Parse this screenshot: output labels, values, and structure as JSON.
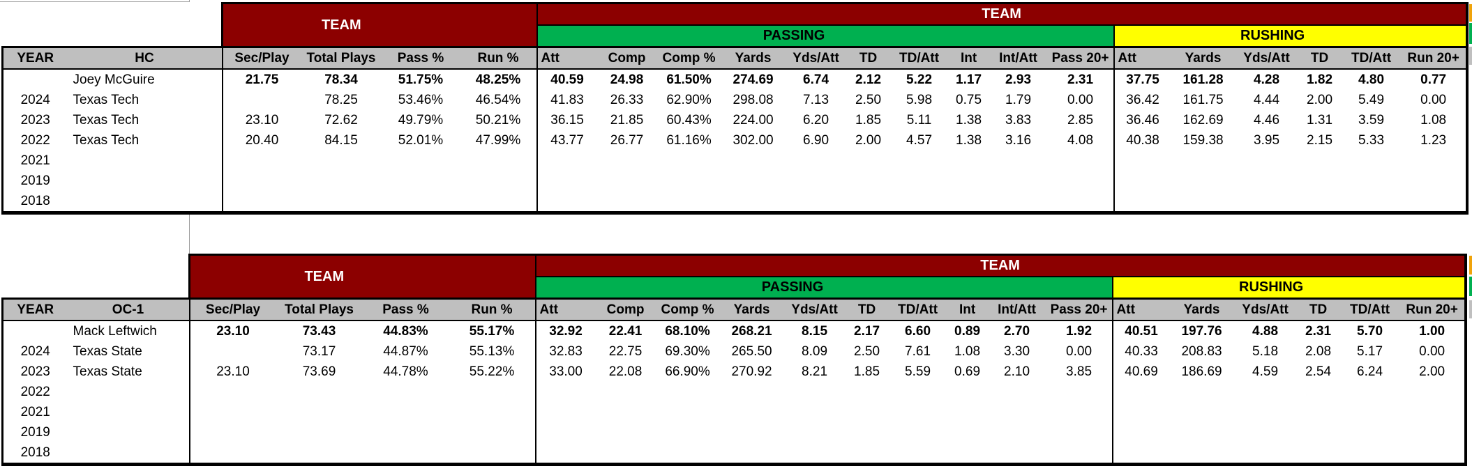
{
  "banners": {
    "team": "TEAM",
    "passing": "PASSING",
    "rushing": "RUSHING"
  },
  "colors": {
    "maroon_banner": "#8C0000",
    "passing_green": "#00B050",
    "rushing_yellow": "#FFFF00",
    "header_gray": "#BFBFBF",
    "right_edge_sliver_orange": "#F0A30A",
    "background": "#FFFFFF",
    "text": "#000000",
    "banner_text": "#FFFFFF"
  },
  "tables": [
    {
      "name": "head-coach-table",
      "coach_column_label": "HC",
      "coach_name": "Joey McGuire",
      "headers": [
        "YEAR",
        "HC",
        "Sec/Play",
        "Total Plays",
        "Pass %",
        "Run %",
        "Att",
        "Comp",
        "Comp %",
        "Yards",
        "Yds/Att",
        "TD",
        "TD/Att",
        "Int",
        "Int/Att",
        "Pass 20+",
        "Att",
        "Yards",
        "Yds/Att",
        "TD",
        "TD/Att",
        "Run 20+"
      ],
      "rows": [
        [
          "",
          "Joey McGuire",
          "21.75",
          "78.34",
          "51.75%",
          "48.25%",
          "40.59",
          "24.98",
          "61.50%",
          "274.69",
          "6.74",
          "2.12",
          "5.22",
          "1.17",
          "2.93",
          "2.31",
          "37.75",
          "161.28",
          "4.28",
          "1.82",
          "4.80",
          "0.77"
        ],
        [
          "2024",
          "Texas Tech",
          "",
          "78.25",
          "53.46%",
          "46.54%",
          "41.83",
          "26.33",
          "62.90%",
          "298.08",
          "7.13",
          "2.50",
          "5.98",
          "0.75",
          "1.79",
          "0.00",
          "36.42",
          "161.75",
          "4.44",
          "2.00",
          "5.49",
          "0.00"
        ],
        [
          "2023",
          "Texas Tech",
          "23.10",
          "72.62",
          "49.79%",
          "50.21%",
          "36.15",
          "21.85",
          "60.43%",
          "224.00",
          "6.20",
          "1.85",
          "5.11",
          "1.38",
          "3.83",
          "2.85",
          "36.46",
          "162.69",
          "4.46",
          "1.31",
          "3.59",
          "1.08"
        ],
        [
          "2022",
          "Texas Tech",
          "20.40",
          "84.15",
          "52.01%",
          "47.99%",
          "43.77",
          "26.77",
          "61.16%",
          "302.00",
          "6.90",
          "2.00",
          "4.57",
          "1.38",
          "3.16",
          "4.08",
          "40.38",
          "159.38",
          "3.95",
          "2.15",
          "5.33",
          "1.23"
        ],
        [
          "2021",
          "",
          "",
          "",
          "",
          "",
          "",
          "",
          "",
          "",
          "",
          "",
          "",
          "",
          "",
          "",
          "",
          "",
          "",
          "",
          "",
          ""
        ],
        [
          "2019",
          "",
          "",
          "",
          "",
          "",
          "",
          "",
          "",
          "",
          "",
          "",
          "",
          "",
          "",
          "",
          "",
          "",
          "",
          "",
          "",
          ""
        ],
        [
          "2018",
          "",
          "",
          "",
          "",
          "",
          "",
          "",
          "",
          "",
          "",
          "",
          "",
          "",
          "",
          "",
          "",
          "",
          "",
          "",
          "",
          ""
        ]
      ]
    },
    {
      "name": "offensive-coordinator-table",
      "coach_column_label": "OC-1",
      "coach_name": "Mack Leftwich",
      "headers": [
        "YEAR",
        "OC-1",
        "Sec/Play",
        "Total Plays",
        "Pass %",
        "Run %",
        "Att",
        "Comp",
        "Comp %",
        "Yards",
        "Yds/Att",
        "TD",
        "TD/Att",
        "Int",
        "Int/Att",
        "Pass 20+",
        "Att",
        "Yards",
        "Yds/Att",
        "TD",
        "TD/Att",
        "Run 20+"
      ],
      "rows": [
        [
          "",
          "Mack Leftwich",
          "23.10",
          "73.43",
          "44.83%",
          "55.17%",
          "32.92",
          "22.41",
          "68.10%",
          "268.21",
          "8.15",
          "2.17",
          "6.60",
          "0.89",
          "2.70",
          "1.92",
          "40.51",
          "197.76",
          "4.88",
          "2.31",
          "5.70",
          "1.00"
        ],
        [
          "2024",
          "Texas State",
          "",
          "73.17",
          "44.87%",
          "55.13%",
          "32.83",
          "22.75",
          "69.30%",
          "265.50",
          "8.09",
          "2.50",
          "7.61",
          "1.08",
          "3.30",
          "0.00",
          "40.33",
          "208.83",
          "5.18",
          "2.08",
          "5.17",
          "0.00"
        ],
        [
          "2023",
          "Texas State",
          "23.10",
          "73.69",
          "44.78%",
          "55.22%",
          "33.00",
          "22.08",
          "66.90%",
          "270.92",
          "8.21",
          "1.85",
          "5.59",
          "0.69",
          "2.10",
          "3.85",
          "40.69",
          "186.69",
          "4.59",
          "2.54",
          "6.24",
          "2.00"
        ],
        [
          "2022",
          "",
          "",
          "",
          "",
          "",
          "",
          "",
          "",
          "",
          "",
          "",
          "",
          "",
          "",
          "",
          "",
          "",
          "",
          "",
          "",
          ""
        ],
        [
          "2021",
          "",
          "",
          "",
          "",
          "",
          "",
          "",
          "",
          "",
          "",
          "",
          "",
          "",
          "",
          "",
          "",
          "",
          "",
          "",
          "",
          ""
        ],
        [
          "2019",
          "",
          "",
          "",
          "",
          "",
          "",
          "",
          "",
          "",
          "",
          "",
          "",
          "",
          "",
          "",
          "",
          "",
          "",
          "",
          "",
          ""
        ],
        [
          "2018",
          "",
          "",
          "",
          "",
          "",
          "",
          "",
          "",
          "",
          "",
          "",
          "",
          "",
          "",
          "",
          "",
          "",
          "",
          "",
          "",
          ""
        ]
      ]
    }
  ]
}
